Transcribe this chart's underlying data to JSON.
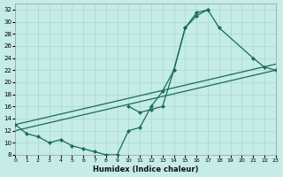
{
  "bg_color": "#c5ece6",
  "grid_color": "#a8d8d0",
  "line_color": "#1a6b5a",
  "xlabel": "Humidex (Indice chaleur)",
  "xlim": [
    0,
    23
  ],
  "ylim": [
    8,
    33
  ],
  "xticks": [
    0,
    1,
    2,
    3,
    4,
    5,
    6,
    7,
    8,
    9,
    10,
    11,
    12,
    13,
    14,
    15,
    16,
    17,
    18,
    19,
    20,
    21,
    22,
    23
  ],
  "yticks": [
    8,
    10,
    12,
    14,
    16,
    18,
    20,
    22,
    24,
    26,
    28,
    30,
    32
  ],
  "curve1_x": [
    0,
    1,
    2,
    3,
    4,
    5,
    6,
    7,
    8,
    9,
    10,
    11,
    12,
    13,
    14,
    15,
    16,
    17
  ],
  "curve1_y": [
    13,
    11.5,
    11,
    10,
    10.5,
    9.5,
    9,
    8.5,
    8,
    8,
    12,
    12.5,
    16,
    18.5,
    22,
    29,
    31,
    32
  ],
  "curve2_x": [
    10,
    11,
    12,
    13,
    14,
    15,
    16,
    17,
    18,
    21,
    22,
    23
  ],
  "curve2_y": [
    16,
    15,
    15.5,
    16,
    22,
    29,
    31.5,
    32,
    29,
    24,
    22.5,
    22
  ],
  "line1_x": [
    0,
    23
  ],
  "line1_y": [
    12,
    22
  ],
  "line2_x": [
    0,
    23
  ],
  "line2_y": [
    13,
    23
  ],
  "markersize": 2.5,
  "linewidth": 0.9
}
